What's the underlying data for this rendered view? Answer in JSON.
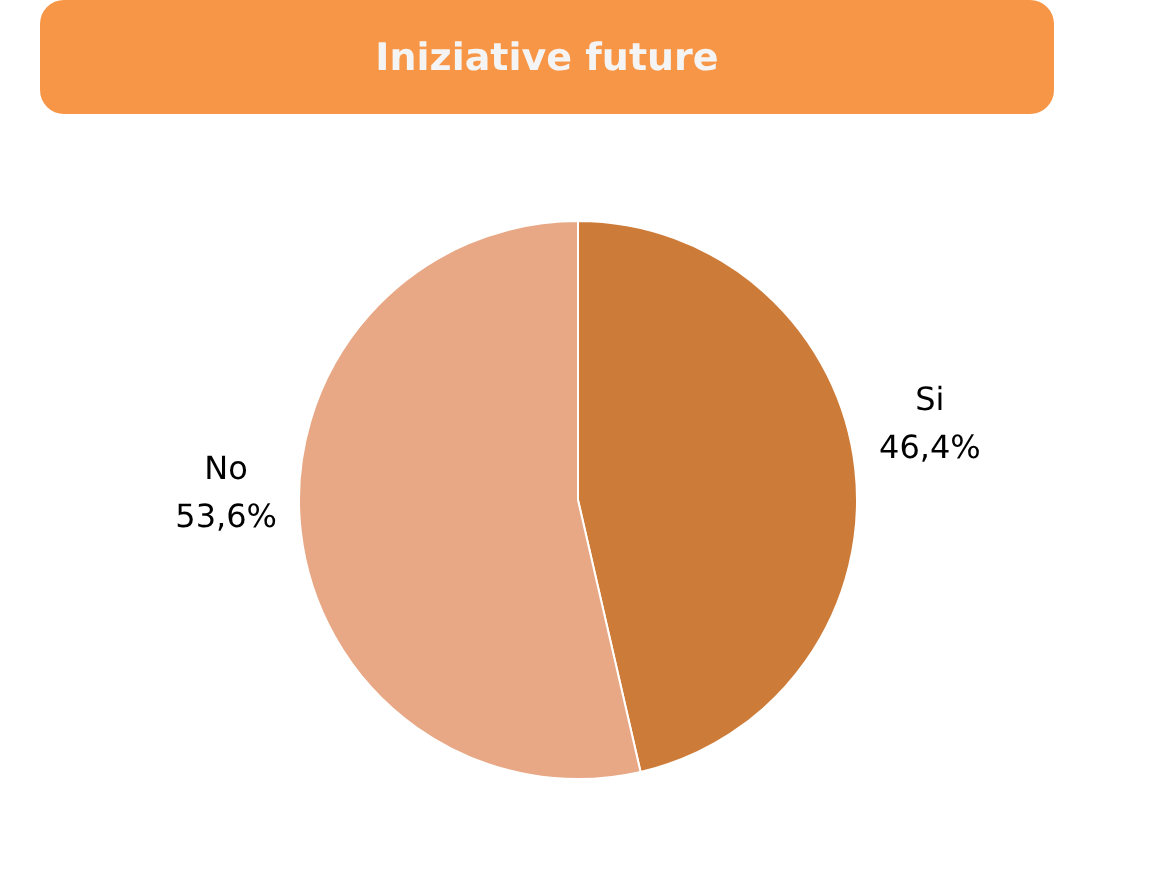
{
  "chart_data": {
    "type": "pie",
    "title": "Iniziative future",
    "categories": [
      "Si",
      "No"
    ],
    "values": [
      46.4,
      53.6
    ],
    "colors": [
      "#cd7b38",
      "#e8a886"
    ],
    "value_labels": [
      "46,4%",
      "53,6%"
    ]
  }
}
